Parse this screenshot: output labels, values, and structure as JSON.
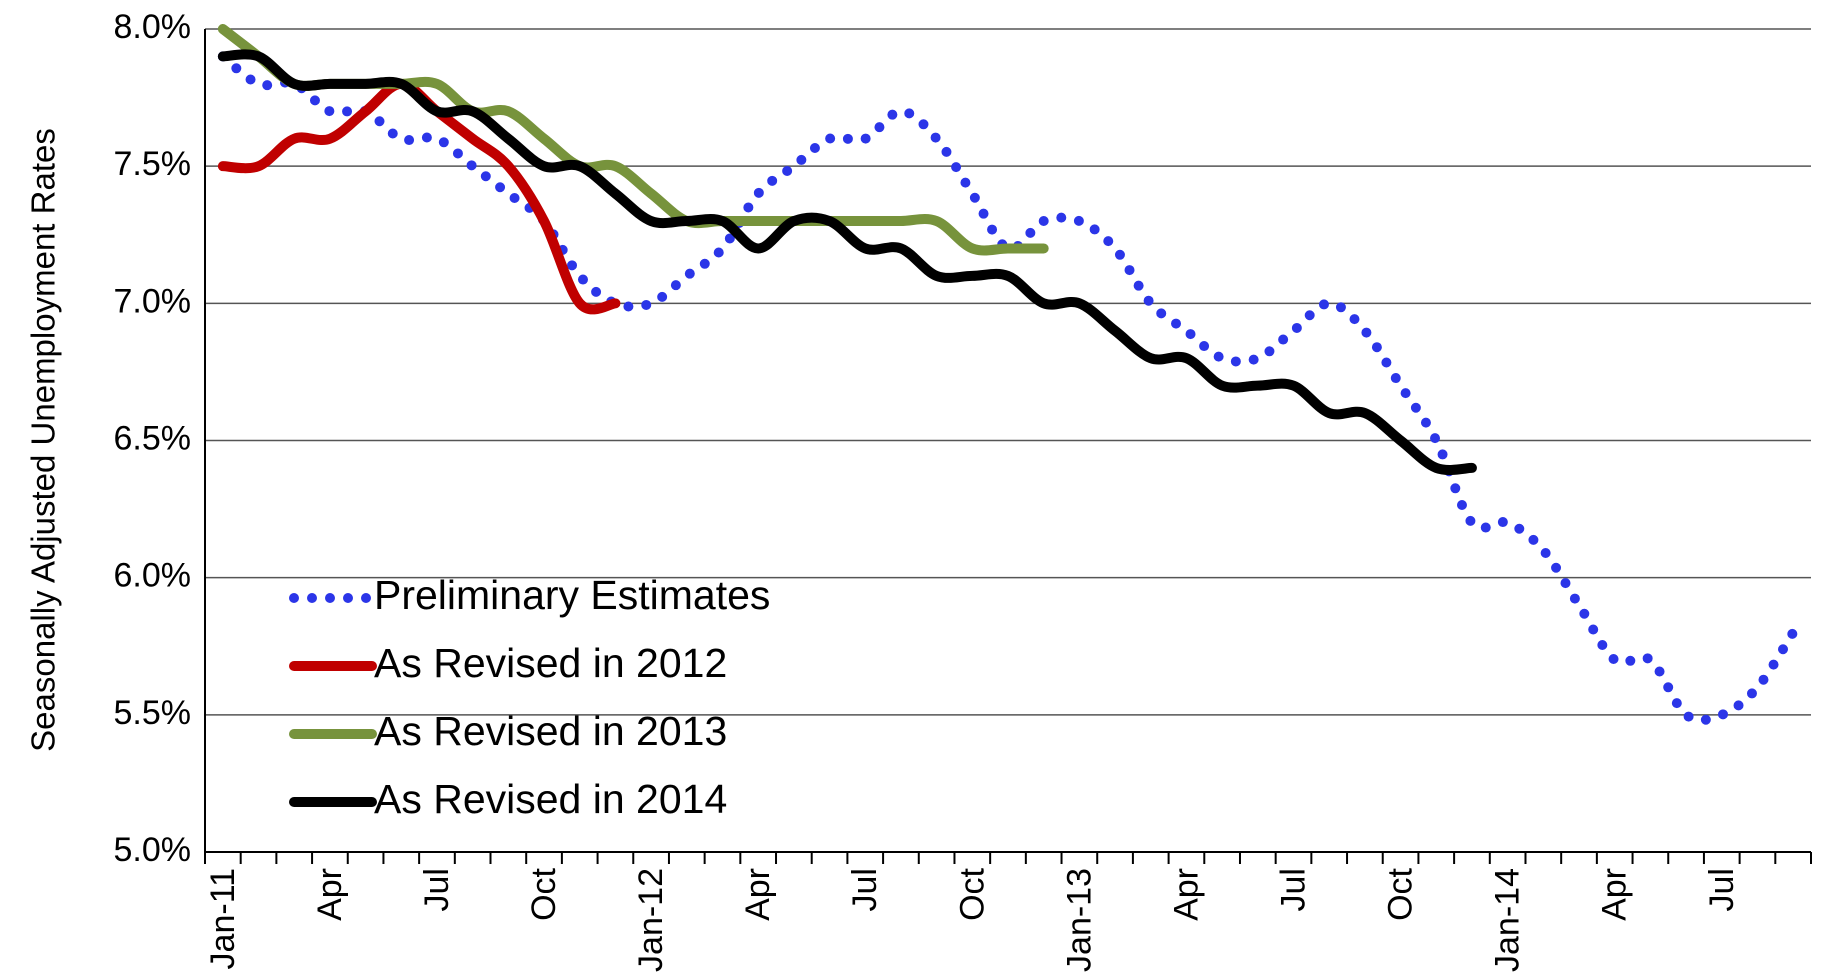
{
  "chart_data": {
    "type": "line",
    "y_label": "Seasonally Adjusted Unemployment Rates",
    "categories": [
      "Jan-11",
      null,
      null,
      "Apr",
      null,
      null,
      "Jul",
      null,
      null,
      "Oct",
      null,
      null,
      "Jan-12",
      null,
      null,
      "Apr",
      null,
      null,
      "Jul",
      null,
      null,
      "Oct",
      null,
      null,
      "Jan-13",
      null,
      null,
      "Apr",
      null,
      null,
      "Jul",
      null,
      null,
      "Oct",
      null,
      null,
      "Jan-14",
      null,
      null,
      "Apr",
      null,
      null,
      "Jul",
      null,
      null
    ],
    "series": [
      {
        "name": "Preliminary Estimates",
        "color": "#2b35e8",
        "style": "dotted",
        "values": [
          7.9,
          7.8,
          7.8,
          7.7,
          7.7,
          7.6,
          7.6,
          7.5,
          7.4,
          7.3,
          7.1,
          7.0,
          7.0,
          7.1,
          7.2,
          7.4,
          7.5,
          7.6,
          7.6,
          7.7,
          7.6,
          7.4,
          7.2,
          7.3,
          7.3,
          7.2,
          7.0,
          6.9,
          6.8,
          6.8,
          6.9,
          7.0,
          6.9,
          6.7,
          6.5,
          6.2,
          6.2,
          6.1,
          5.9,
          5.7,
          5.7,
          5.5,
          5.5,
          5.6,
          5.8
        ]
      },
      {
        "name": "As Revised in 2012",
        "color": "#c00000",
        "style": "solid",
        "values": [
          7.5,
          7.5,
          7.6,
          7.6,
          7.7,
          7.8,
          7.7,
          7.6,
          7.5,
          7.3,
          7.0,
          7.0,
          null,
          null,
          null,
          null,
          null,
          null,
          null,
          null,
          null,
          null,
          null,
          null,
          null,
          null,
          null,
          null,
          null,
          null,
          null,
          null,
          null,
          null,
          null,
          null,
          null,
          null,
          null,
          null,
          null,
          null,
          null,
          null,
          null
        ]
      },
      {
        "name": "As Revised in 2013",
        "color": "#77933c",
        "style": "solid",
        "values": [
          8.0,
          7.9,
          7.8,
          7.8,
          7.8,
          7.8,
          7.8,
          7.7,
          7.7,
          7.6,
          7.5,
          7.5,
          7.4,
          7.3,
          7.3,
          7.3,
          7.3,
          7.3,
          7.3,
          7.3,
          7.3,
          7.2,
          7.2,
          7.2,
          null,
          null,
          null,
          null,
          null,
          null,
          null,
          null,
          null,
          null,
          null,
          null,
          null,
          null,
          null,
          null,
          null,
          null,
          null,
          null,
          null
        ]
      },
      {
        "name": "As Revised in 2014",
        "color": "#000000",
        "style": "solid",
        "values": [
          7.9,
          7.9,
          7.8,
          7.8,
          7.8,
          7.8,
          7.7,
          7.7,
          7.6,
          7.5,
          7.5,
          7.4,
          7.3,
          7.3,
          7.3,
          7.2,
          7.3,
          7.3,
          7.2,
          7.2,
          7.1,
          7.1,
          7.1,
          7.0,
          7.0,
          6.9,
          6.8,
          6.8,
          6.7,
          6.7,
          6.7,
          6.6,
          6.6,
          6.5,
          6.4,
          6.4,
          null,
          null,
          null,
          null,
          null,
          null,
          null,
          null,
          null
        ]
      }
    ],
    "ylim": [
      5.0,
      8.0
    ],
    "yticks": [
      {
        "value": 5.0,
        "label": "5.0%"
      },
      {
        "value": 5.5,
        "label": "5.5%"
      },
      {
        "value": 6.0,
        "label": "6.0%"
      },
      {
        "value": 6.5,
        "label": "6.5%"
      },
      {
        "value": 7.0,
        "label": "7.0%"
      },
      {
        "value": 7.5,
        "label": "7.5%"
      },
      {
        "value": 8.0,
        "label": "8.0%"
      }
    ],
    "grid": true,
    "legend": "lower left"
  }
}
